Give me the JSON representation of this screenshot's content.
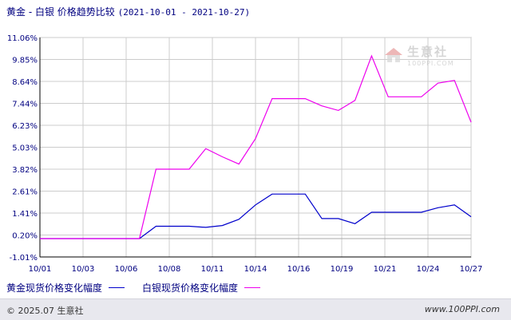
{
  "title": {
    "main": "黄金 - 白银 价格趋势比较",
    "range": "(2021-10-01 - 2021-10-27)"
  },
  "watermark": {
    "name": "生意社",
    "url": "100PPI.COM"
  },
  "footer": {
    "copyright": "© 2025.07 生意社",
    "site": "www.100PPI.com"
  },
  "colors": {
    "gold": "#0000cc",
    "silver": "#ee00ee",
    "grid": "#cccccc",
    "axis": "#000000",
    "text": "#000080"
  },
  "chart_data": {
    "type": "line",
    "title": "黄金 - 白银 价格趋势比较",
    "xlabel": "",
    "ylabel": "",
    "x_ticks": [
      "10/01",
      "10/03",
      "10/06",
      "10/08",
      "10/11",
      "10/14",
      "10/16",
      "10/19",
      "10/21",
      "10/24",
      "10/27"
    ],
    "y_ticks": [
      "11.06%",
      "9.85%",
      "8.64%",
      "7.44%",
      "6.23%",
      "5.03%",
      "3.82%",
      "2.61%",
      "1.41%",
      "0.20%",
      "-1.01%"
    ],
    "ylim": [
      -1.01,
      11.06
    ],
    "grid": true,
    "legend_position": "bottom-left",
    "x": [
      "10/01",
      "10/02",
      "10/03",
      "10/04",
      "10/05",
      "10/06",
      "10/07",
      "10/08",
      "10/09",
      "10/10",
      "10/11",
      "10/12",
      "10/13",
      "10/14",
      "10/15",
      "10/16",
      "10/17",
      "10/18",
      "10/19",
      "10/20",
      "10/21",
      "10/22",
      "10/23",
      "10/24",
      "10/25",
      "10/26",
      "10/27"
    ],
    "series": [
      {
        "name": "黄金现货价格变化幅度",
        "color": "#0000cc",
        "values": [
          0,
          0,
          0,
          0,
          0,
          0,
          0,
          0.68,
          0.68,
          0.68,
          0.62,
          0.72,
          1.06,
          1.85,
          2.45,
          2.45,
          2.45,
          1.1,
          1.1,
          0.82,
          1.45,
          1.45,
          1.45,
          1.45,
          1.7,
          1.85,
          1.2
        ]
      },
      {
        "name": "白银现货价格变化幅度",
        "color": "#ee00ee",
        "values": [
          0,
          0,
          0,
          0,
          0,
          0,
          0,
          3.82,
          3.82,
          3.82,
          4.95,
          4.5,
          4.1,
          5.5,
          7.7,
          7.7,
          7.7,
          7.3,
          7.05,
          7.6,
          10.05,
          7.8,
          7.8,
          7.8,
          8.55,
          8.7,
          6.4
        ]
      }
    ]
  }
}
